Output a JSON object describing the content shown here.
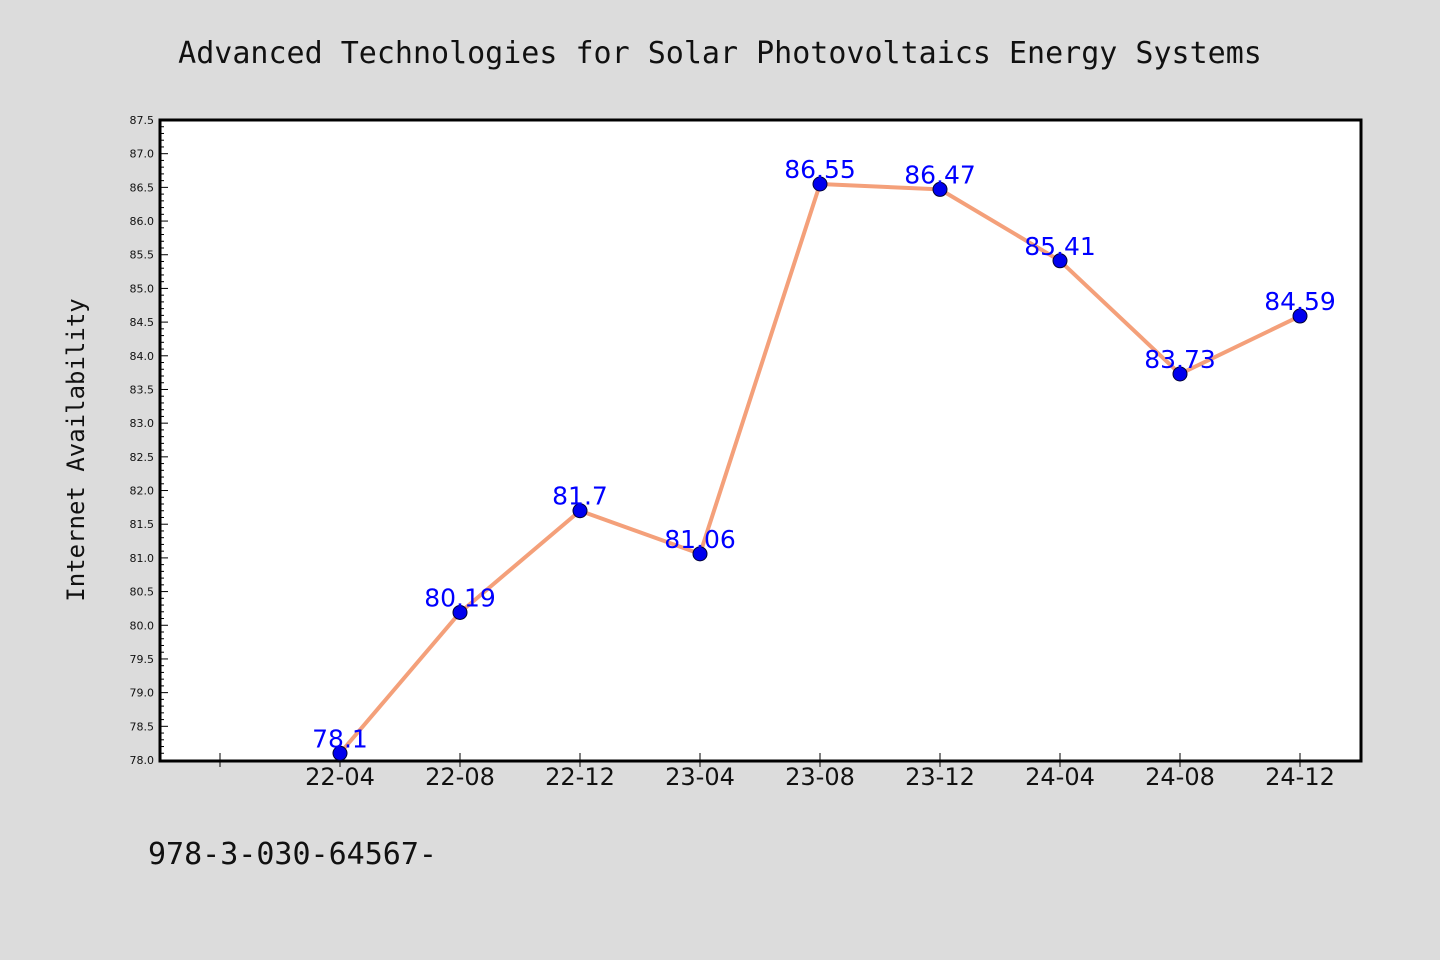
{
  "chart_data": {
    "type": "line",
    "title": "Advanced Technologies for Solar Photovoltaics Energy Systems",
    "ylabel": "Internet Availability",
    "xlabel": "",
    "categories": [
      "22-04",
      "22-08",
      "22-12",
      "23-04",
      "23-08",
      "23-12",
      "24-04",
      "24-08",
      "24-12"
    ],
    "values": [
      78.1,
      80.19,
      81.7,
      81.06,
      86.55,
      86.47,
      85.41,
      83.73,
      84.59
    ],
    "data_labels": [
      "78.1",
      "80.19",
      "81.7",
      "81.06",
      "86.55",
      "86.47",
      "85.41",
      "83.73",
      "84.59"
    ],
    "ylim": [
      78.0,
      87.5
    ],
    "ytick_step": 0.5,
    "grid": false,
    "legend": "none",
    "colors": {
      "line": "#f4a07a",
      "marker": "#0000ee",
      "marker_edge": "#000033",
      "data_label": "#0000ff",
      "plot_bg": "#ffffff",
      "page_bg": "#dcdcdc"
    }
  },
  "footer": {
    "isbn_text": "978-3-030-64567-"
  }
}
